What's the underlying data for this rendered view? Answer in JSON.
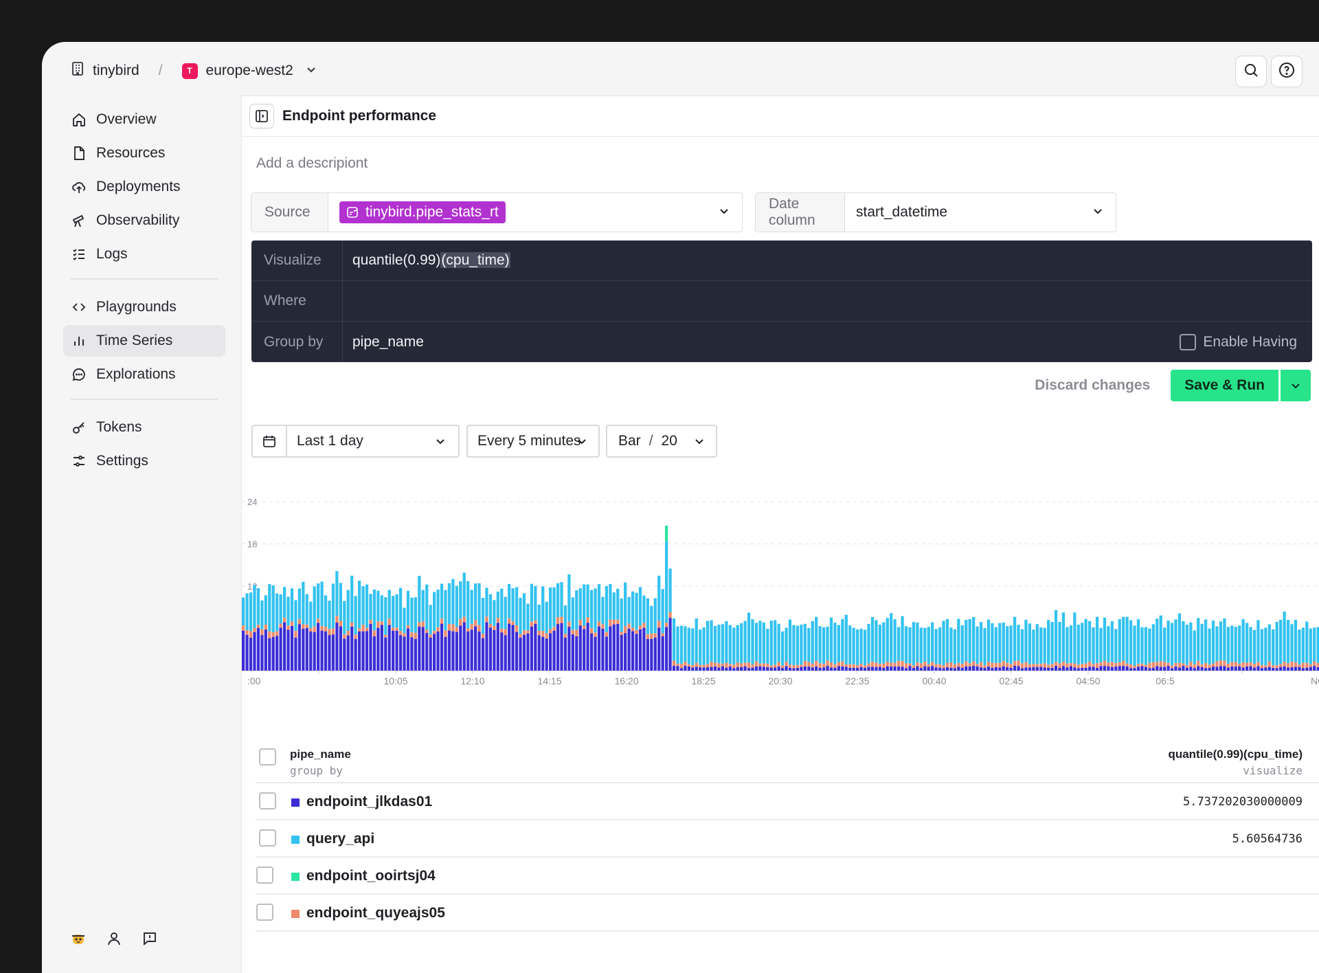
{
  "topbar": {
    "workspace": "tinybird",
    "separator": "/",
    "region_badge": "T",
    "region": "europe-west2",
    "icons": [
      "building-icon",
      "chevron-down-icon",
      "search-icon",
      "help-icon"
    ]
  },
  "sidebar": {
    "items": [
      {
        "label": "Overview",
        "icon": "home-icon"
      },
      {
        "label": "Resources",
        "icon": "file-icon"
      },
      {
        "label": "Deployments",
        "icon": "cloud-upload-icon"
      },
      {
        "label": "Observability",
        "icon": "telescope-icon"
      },
      {
        "label": "Logs",
        "icon": "list-check-icon"
      },
      {
        "label": "Playgrounds",
        "icon": "code-icon"
      },
      {
        "label": "Time Series",
        "icon": "bar-chart-icon",
        "active": true
      },
      {
        "label": "Explorations",
        "icon": "chat-icon"
      },
      {
        "label": "Tokens",
        "icon": "key-icon"
      },
      {
        "label": "Settings",
        "icon": "sliders-icon"
      }
    ],
    "footer_icons": [
      "bird-avatar-icon",
      "user-icon",
      "feedback-icon"
    ]
  },
  "panel": {
    "title": "Endpoint performance",
    "description_placeholder": "Add a descripiont",
    "source_label": "Source",
    "source_value": "tinybird.pipe_stats_rt",
    "date_column_label": "Date column",
    "date_column_value": "start_datetime",
    "visualize_label": "Visualize",
    "visualize_prefix": "quantile(0.99)",
    "visualize_selected": "(cpu_time)",
    "where_label": "Where",
    "where_value": "",
    "groupby_label": "Group by",
    "groupby_value": "pipe_name",
    "enable_having": "Enable Having",
    "discard": "Discard changes",
    "save_run": "Save & Run",
    "range": "Last 1 day",
    "interval": "Every 5 minutes",
    "chart_type": "Bar",
    "chart_sep": "/",
    "chart_limit": "20",
    "accent_color": "#27e48a",
    "source_chip_color": "#b232d0"
  },
  "chart_data": {
    "type": "bar",
    "stacked": true,
    "ylim": [
      0,
      24
    ],
    "yticks": [
      "24",
      "18",
      "12"
    ],
    "xticks": [
      ":00",
      "10:05",
      "12:10",
      "14:15",
      "16:20",
      "18:25",
      "20:30",
      "22:35",
      "00:40",
      "02:45",
      "04:50",
      "06:5",
      "NO"
    ],
    "series": [
      {
        "name": "endpoint_jlkdas01",
        "color": "#3b2ed6"
      },
      {
        "name": "endpoint_quyeajs05",
        "color": "#f08a6a"
      },
      {
        "name": "query_api",
        "color": "#33c2f0"
      },
      {
        "name": "endpoint_ooirtsj04",
        "color": "#2ce6a0"
      }
    ],
    "notes": "Before 16:20 bars total ~10-12 (jlkdas01 ~5.7, quyeajs05 ~0.6, query_api ~4.5); spike at 16:20 to ~20.5 (top ~2 endpoint_ooirtsj04); after 16:20 totals ~6.5 mostly query_api with small jlkdas01/quyeajs05 bases."
  },
  "table": {
    "col_name": "pipe_name",
    "col_name_sub": "group by",
    "col_value": "quantile(0.99)(cpu_time)",
    "col_value_sub": "visualize",
    "rows": [
      {
        "name": "endpoint_jlkdas01",
        "value": "5.737202030000009",
        "color": "#3b2ed6"
      },
      {
        "name": "query_api",
        "value": "5.60564736",
        "color": "#33c2f0"
      },
      {
        "name": "endpoint_ooirtsj04",
        "value": "",
        "color": "#2ce6a0"
      },
      {
        "name": "endpoint_quyeajs05",
        "value": "",
        "color": "#f08a6a"
      }
    ]
  }
}
